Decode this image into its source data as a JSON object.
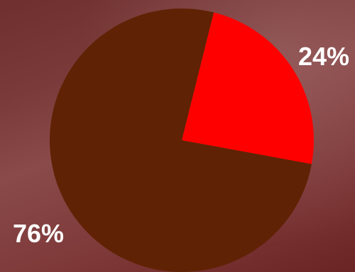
{
  "chart_data": {
    "type": "pie",
    "title": "",
    "slices": [
      {
        "label": "24%",
        "value": 24,
        "color": "#ff0000"
      },
      {
        "label": "76%",
        "value": 76,
        "color": "#5f2204"
      }
    ],
    "legend": "none"
  }
}
